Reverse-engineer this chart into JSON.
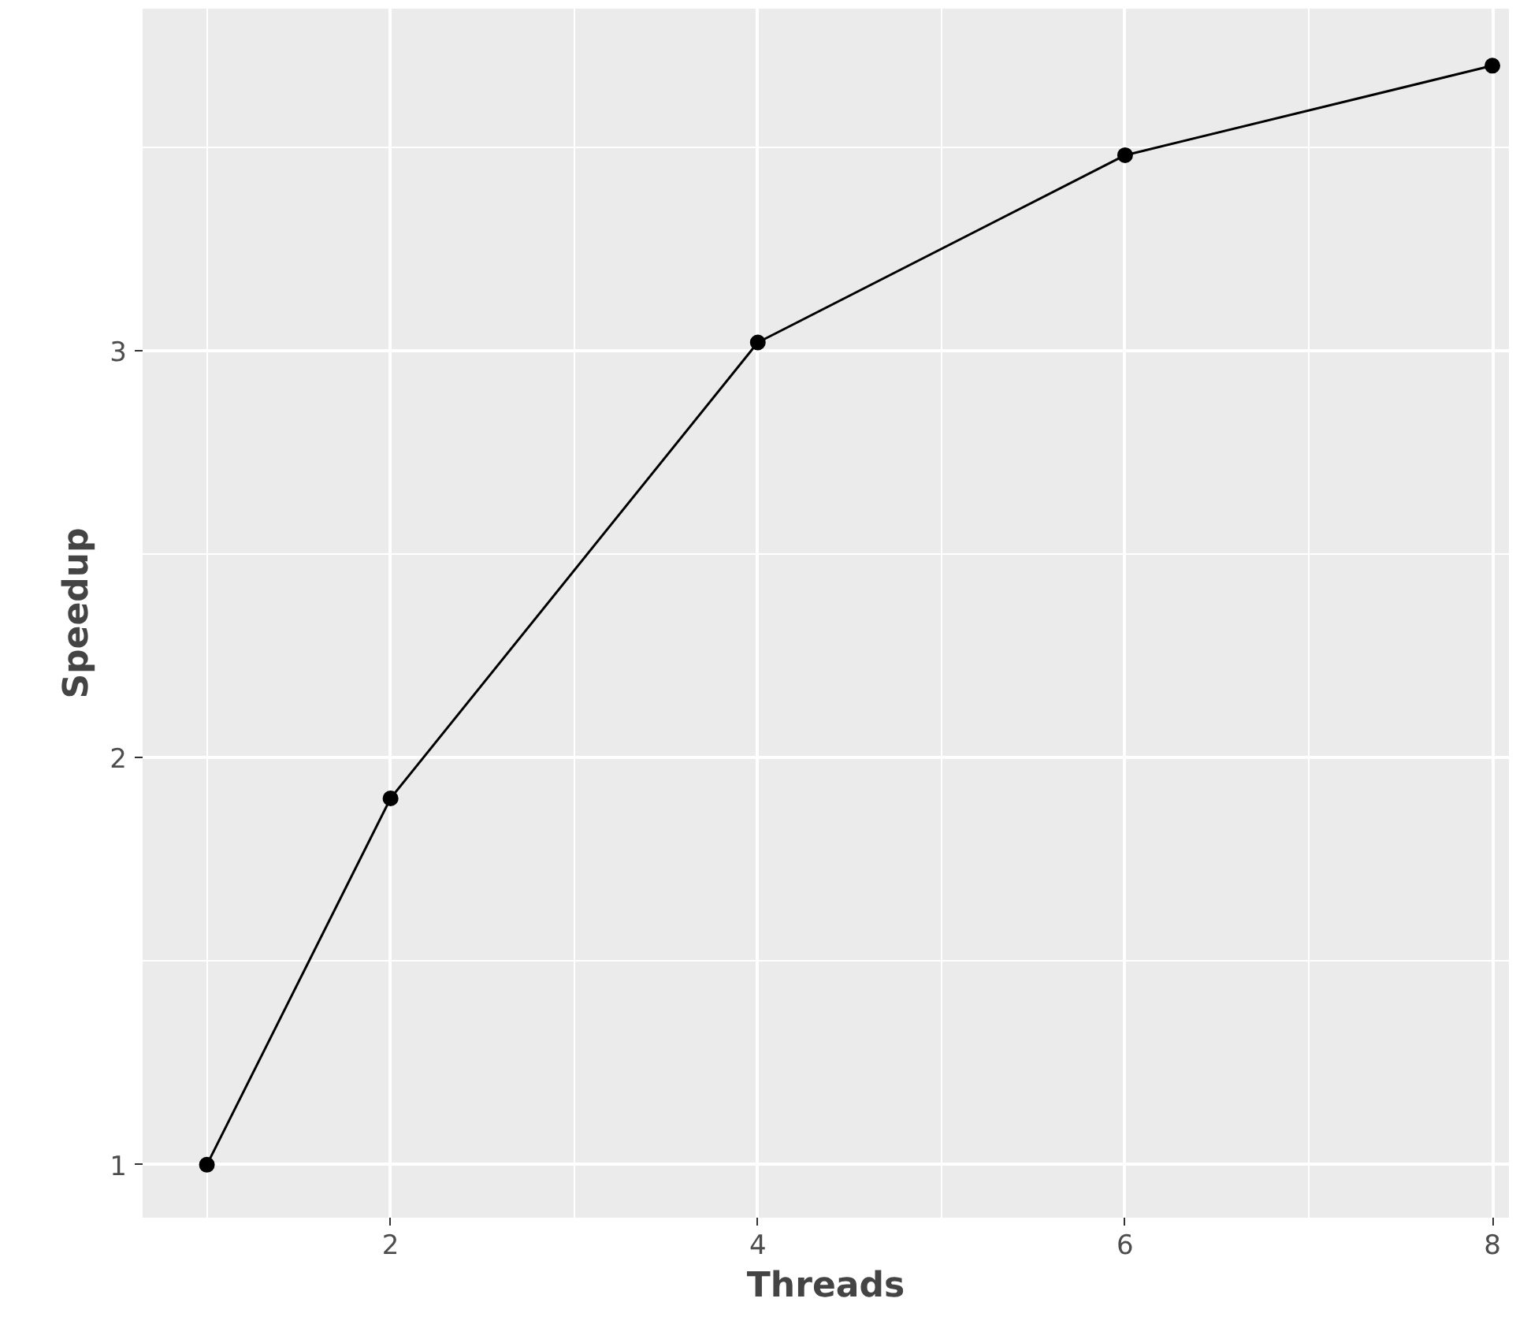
{
  "chart_data": {
    "type": "line",
    "xlabel": "Threads",
    "ylabel": "Speedup",
    "x": [
      1,
      2,
      4,
      6,
      8
    ],
    "series": [
      {
        "color": "#000000",
        "values": [
          1,
          1.9,
          3.02,
          3.48,
          3.7
        ]
      }
    ],
    "xlim": [
      0.65,
      8.09
    ],
    "ylim": [
      0.87,
      3.84
    ],
    "xticks": [
      2,
      4,
      6,
      8
    ],
    "yticks": [
      1,
      2,
      3
    ],
    "grid": true,
    "marker": "circle",
    "line_style": "solid"
  }
}
